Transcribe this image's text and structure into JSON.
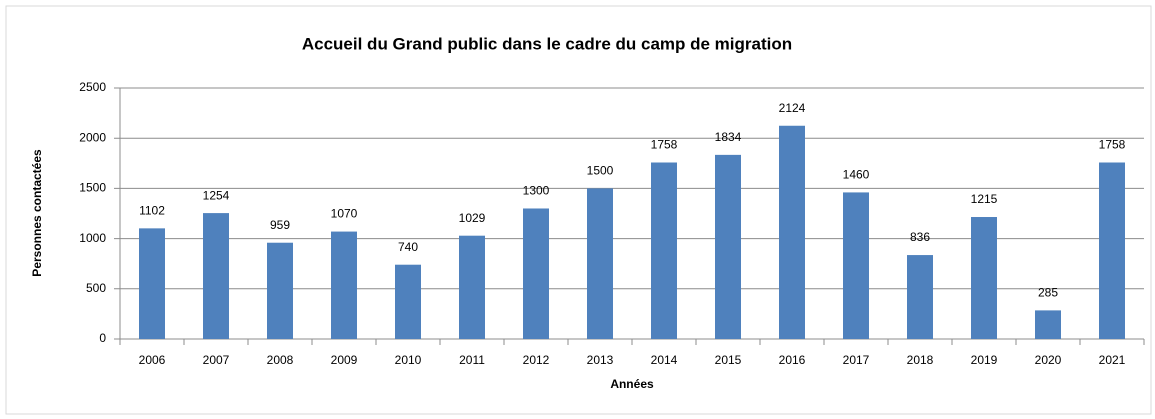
{
  "chart_data": {
    "type": "bar",
    "title": "Accueil du Grand public dans le cadre du camp de migration",
    "x_label": "Années",
    "y_label": "Personnes contactées",
    "categories": [
      "2006",
      "2007",
      "2008",
      "2009",
      "2010",
      "2011",
      "2012",
      "2013",
      "2014",
      "2015",
      "2016",
      "2017",
      "2018",
      "2019",
      "2020",
      "2021"
    ],
    "values": [
      1102,
      1254,
      959,
      1070,
      740,
      1029,
      1300,
      1500,
      1758,
      1834,
      2124,
      1460,
      836,
      1215,
      285,
      1758
    ],
    "color": "#4f81bd",
    "ylim": [
      0,
      2500
    ],
    "yticks": [
      0,
      500,
      1000,
      1500,
      2000,
      2500
    ],
    "grid": true
  }
}
